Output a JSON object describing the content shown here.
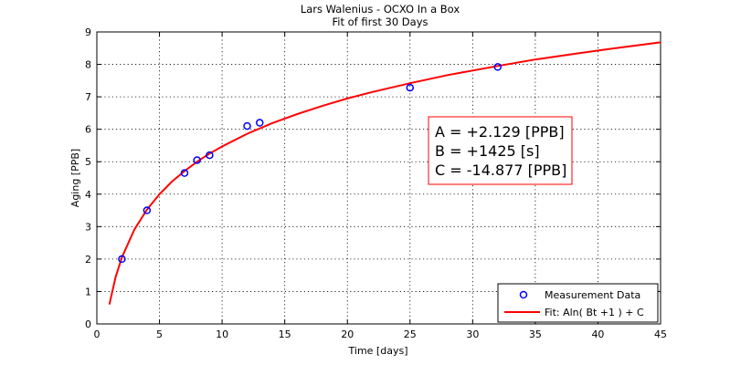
{
  "chart_data": {
    "type": "scatter",
    "title": "Lars Walenius - OCXO In a Box",
    "subtitle": "Fit of first 30 Days",
    "xlabel": "Time [days]",
    "ylabel": "Aging [PPB]",
    "xlim": [
      0,
      45
    ],
    "ylim": [
      0,
      9
    ],
    "xticks": [
      "0",
      "5",
      "10",
      "15",
      "20",
      "25",
      "30",
      "35",
      "40",
      "45"
    ],
    "yticks": [
      "0",
      "1",
      "2",
      "3",
      "4",
      "5",
      "6",
      "7",
      "8",
      "9"
    ],
    "grid": true,
    "legend_position": "bottom-right",
    "series": [
      {
        "name": "Measurement Data",
        "kind": "markers",
        "color": "#0000ff",
        "points": [
          {
            "x": 2,
            "y": 2.0
          },
          {
            "x": 4,
            "y": 3.5
          },
          {
            "x": 7,
            "y": 4.65
          },
          {
            "x": 8,
            "y": 5.05
          },
          {
            "x": 9,
            "y": 5.2
          },
          {
            "x": 12,
            "y": 6.1
          },
          {
            "x": 13,
            "y": 6.2
          },
          {
            "x": 25,
            "y": 7.28
          },
          {
            "x": 32,
            "y": 7.92
          }
        ]
      },
      {
        "name": "Fit: Aln( Bt +1 ) + C",
        "kind": "line",
        "color": "#ff0000",
        "points": [
          {
            "x": 1,
            "y": 0.6
          },
          {
            "x": 1.5,
            "y": 1.45
          },
          {
            "x": 2,
            "y": 2.05
          },
          {
            "x": 3,
            "y": 2.91
          },
          {
            "x": 4,
            "y": 3.52
          },
          {
            "x": 5,
            "y": 4.0
          },
          {
            "x": 6,
            "y": 4.39
          },
          {
            "x": 7,
            "y": 4.71
          },
          {
            "x": 8,
            "y": 5.0
          },
          {
            "x": 9,
            "y": 5.25
          },
          {
            "x": 10,
            "y": 5.47
          },
          {
            "x": 12,
            "y": 5.86
          },
          {
            "x": 14,
            "y": 6.19
          },
          {
            "x": 16,
            "y": 6.47
          },
          {
            "x": 18,
            "y": 6.72
          },
          {
            "x": 20,
            "y": 6.95
          },
          {
            "x": 22,
            "y": 7.15
          },
          {
            "x": 25,
            "y": 7.42
          },
          {
            "x": 28,
            "y": 7.67
          },
          {
            "x": 30,
            "y": 7.81
          },
          {
            "x": 32,
            "y": 7.95
          },
          {
            "x": 35,
            "y": 8.15
          },
          {
            "x": 38,
            "y": 8.32
          },
          {
            "x": 41,
            "y": 8.48
          },
          {
            "x": 45,
            "y": 8.68
          }
        ]
      }
    ],
    "annotation": {
      "border_color": "#ff0000",
      "lines": [
        "A = +2.129 [PPB]",
        "B = +1425 [s]",
        "C = -14.877 [PPB]"
      ]
    }
  }
}
